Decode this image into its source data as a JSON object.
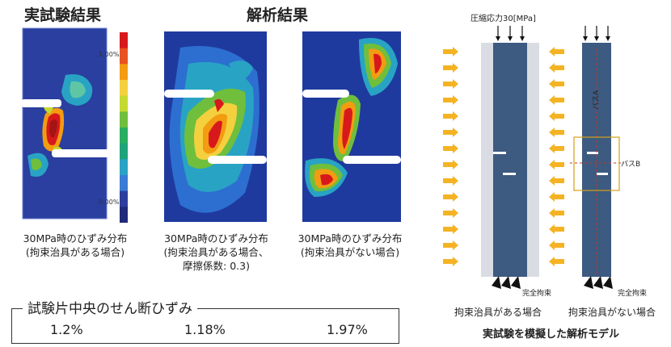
{
  "headings": {
    "experiment": "実試験結果",
    "analysis": "解析結果"
  },
  "colorbar": {
    "max_label": "1.00%",
    "min_label": "0.00%",
    "colors": [
      "#d7191c",
      "#e8531f",
      "#f39c12",
      "#f4d03f",
      "#c5d930",
      "#6fbf3c",
      "#27ae60",
      "#1fa37a",
      "#29a3c4",
      "#3a7bd5",
      "#2c3e9e",
      "#1f2a7a"
    ]
  },
  "panels": [
    {
      "caption_lines": [
        "30MPa時のひずみ分布",
        "(拘束治具がある場合)"
      ]
    },
    {
      "caption_lines": [
        "30MPa時のひずみ分布",
        "(拘束治具がある場合、",
        "摩擦係数: 0.3)"
      ]
    },
    {
      "caption_lines": [
        "30MPa時のひずみ分布",
        "(拘束治具がない場合)"
      ]
    }
  ],
  "shear_strain": {
    "title": "試験片中央のせん断ひずみ",
    "values": [
      "1.2%",
      "1.18%",
      "1.97%"
    ]
  },
  "model": {
    "load_label": "圧縮応力30[MPa]",
    "path_a": "パスA",
    "path_b": "パスB",
    "fixed_label_1": "完全拘束",
    "fixed_label_2": "完全拘束",
    "caption_with": "拘束治具がある場合",
    "caption_without": "拘束治具がない場合",
    "title": "実試験を模擬した解析モデル",
    "colors": {
      "specimen": "#3d5a80",
      "jig": "#d9dde3",
      "arrow": "#f5b324",
      "box": "#d4a017",
      "path_line": "#c0392b"
    }
  }
}
